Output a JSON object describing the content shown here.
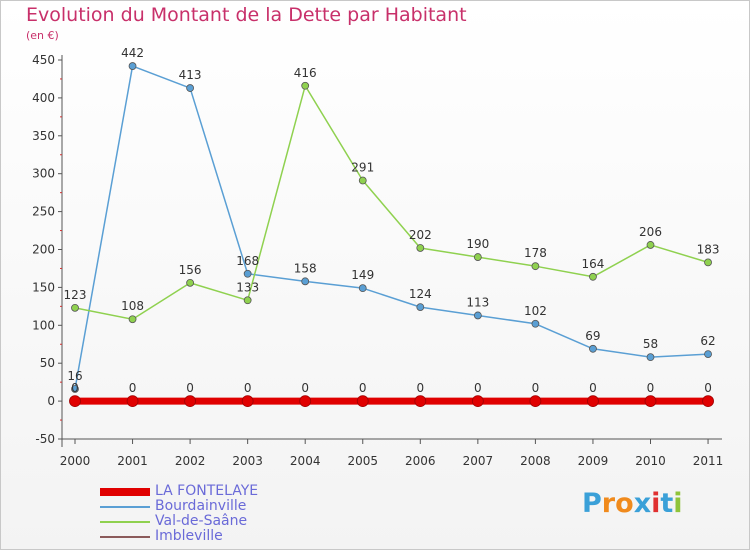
{
  "chart_data": {
    "type": "line",
    "title": "Evolution du Montant de la Dette par Habitant",
    "subtitle": "(en €)",
    "categories": [
      "2000",
      "2001",
      "2002",
      "2003",
      "2004",
      "2005",
      "2006",
      "2007",
      "2008",
      "2009",
      "2010",
      "2011"
    ],
    "ylim": [
      -50,
      450
    ],
    "yticks": [
      -50,
      0,
      50,
      100,
      150,
      200,
      250,
      300,
      350,
      400,
      450
    ],
    "grid": false,
    "legend_position": "bottom-left",
    "series": [
      {
        "name": "LA FONTELAYE",
        "color": "#e00000",
        "values": [
          0,
          0,
          0,
          0,
          0,
          0,
          0,
          0,
          0,
          0,
          0,
          0
        ],
        "labels": [
          "",
          "",
          "",
          "",
          "",
          "",
          "",
          "",
          "",
          "",
          "",
          ""
        ]
      },
      {
        "name": "Bourdainville",
        "color": "#5a9fd4",
        "values": [
          16,
          442,
          413,
          168,
          158,
          149,
          124,
          113,
          102,
          69,
          58,
          62
        ],
        "labels": [
          "16",
          "442",
          "413",
          "168",
          "158",
          "149",
          "124",
          "113",
          "102",
          "69",
          "58",
          "62"
        ]
      },
      {
        "name": "Val-de-Saâne",
        "color": "#8fd14f",
        "values": [
          123,
          108,
          156,
          133,
          416,
          291,
          202,
          190,
          178,
          164,
          206,
          183
        ],
        "labels": [
          "123",
          "108",
          "156",
          "133",
          "416",
          "291",
          "202",
          "190",
          "178",
          "164",
          "206",
          "183"
        ]
      },
      {
        "name": "Imbleville",
        "color": "#8b5a5a",
        "values": [
          0,
          0,
          0,
          0,
          0,
          0,
          0,
          0,
          0,
          0,
          0,
          0
        ],
        "labels": [
          "0",
          "0",
          "0",
          "0",
          "0",
          "0",
          "0",
          "0",
          "0",
          "0",
          "0",
          "0"
        ]
      }
    ]
  },
  "brand": {
    "logo_text": "Proxiti"
  }
}
